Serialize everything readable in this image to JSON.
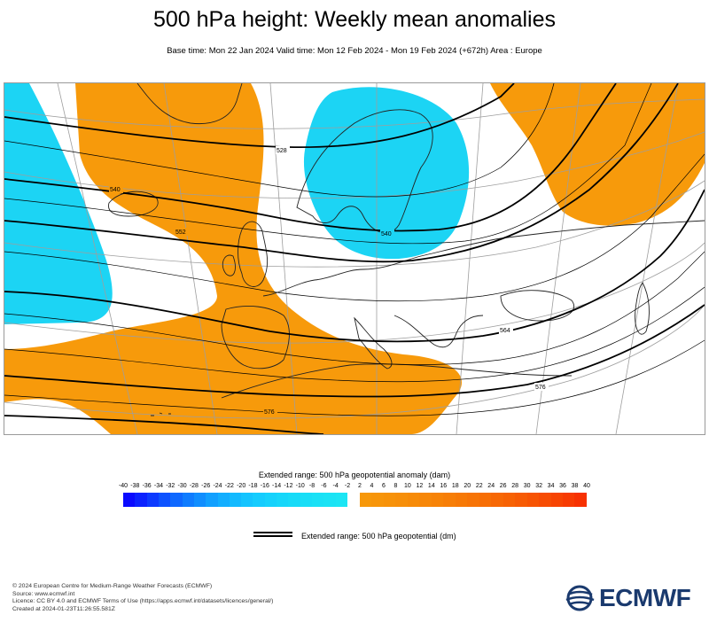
{
  "title": "500 hPa height: Weekly mean anomalies",
  "subtitle": "Base time: Mon 22 Jan 2024 Valid time: Mon 12 Feb 2024 - Mon 19 Feb 2024 (+672h) Area : Europe",
  "map": {
    "contour_labels": [
      "540",
      "552",
      "528",
      "540",
      "564",
      "576",
      "576"
    ],
    "colors": {
      "positive_anomaly": "#f79a0b",
      "negative_anomaly": "#1cd4f4",
      "contour": "#000000",
      "coastline": "#222222",
      "graticule": "#9e9e9e",
      "background": "#ffffff"
    }
  },
  "legend": {
    "title": "Extended range: 500 hPa geopotential anomaly (dam)",
    "negative_ticks": [
      "-40",
      "-38",
      "-36",
      "-34",
      "-32",
      "-30",
      "-28",
      "-26",
      "-24",
      "-22",
      "-20",
      "-18",
      "-16",
      "-14",
      "-12",
      "-10",
      "-8",
      "-6",
      "-4",
      "-2"
    ],
    "positive_ticks": [
      "2",
      "4",
      "6",
      "8",
      "10",
      "12",
      "14",
      "16",
      "18",
      "20",
      "22",
      "24",
      "26",
      "28",
      "30",
      "32",
      "34",
      "36",
      "38",
      "40"
    ],
    "negative_colors": [
      "#0a0aff",
      "#0b22ff",
      "#0c3aff",
      "#0d52ff",
      "#0e68ff",
      "#0f7cff",
      "#108eff",
      "#11a0ff",
      "#12aeff",
      "#13baff",
      "#14c4ff",
      "#15ccfe",
      "#16d2fc",
      "#17d7fa",
      "#18dbf8",
      "#19def7",
      "#1ae1f6",
      "#1be3f5",
      "#1ce5f4"
    ],
    "positive_colors": [
      "#f7980a",
      "#f7950a",
      "#f79209",
      "#f78f09",
      "#f78b08",
      "#f78708",
      "#f78307",
      "#f77e07",
      "#f77906",
      "#f77406",
      "#f76e05",
      "#f76805",
      "#f76204",
      "#f75b04",
      "#f75403",
      "#f74c03",
      "#f74402",
      "#f73b02",
      "#f73101"
    ],
    "contour_label": "Extended range: 500 hPa geopotential (dm)"
  },
  "footer": {
    "line1": "© 2024 European Centre for Medium-Range Weather Forecasts (ECMWF)",
    "line2": "Source: www.ecmwf.int",
    "line3": "Licence: CC BY 4.0 and ECMWF Terms of Use (https://apps.ecmwf.int/datasets/licences/general/)",
    "line4": "Created at 2024-01-23T11:26:55.581Z"
  },
  "logo": {
    "text": "ECMWF",
    "color": "#1a3a6e"
  }
}
